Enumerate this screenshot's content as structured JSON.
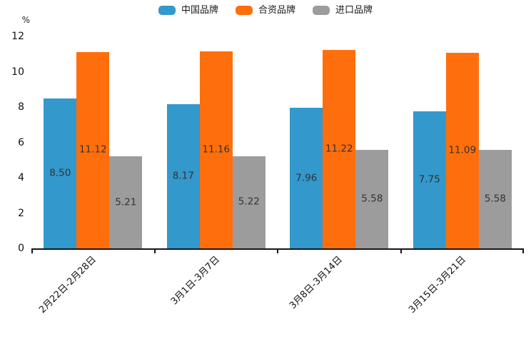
{
  "chart_data": {
    "type": "bar",
    "title": "",
    "categories": [
      "2月22日-2月28日",
      "3月1日-3月7日",
      "3月8日-3月14日",
      "3月15日-3月21日"
    ],
    "series": [
      {
        "name": "中国品牌",
        "color": "#3398CB",
        "values": [
          8.5,
          8.17,
          7.96,
          7.75
        ],
        "labels": [
          "8.50",
          "8.17",
          "7.96",
          "7.75"
        ]
      },
      {
        "name": "合资品牌",
        "color": "#FF6E0C",
        "values": [
          11.12,
          11.16,
          11.22,
          11.09
        ],
        "labels": [
          "11.12",
          "11.16",
          "11.22",
          "11.09"
        ]
      },
      {
        "name": "进口品牌",
        "color": "#9C9C9C",
        "values": [
          5.21,
          5.22,
          5.58,
          5.58
        ],
        "labels": [
          "5.21",
          "5.22",
          "5.58",
          "5.58"
        ]
      }
    ],
    "xlabel": "",
    "ylabel": "%",
    "ylim": [
      0,
      12
    ],
    "yticks": [
      0,
      2,
      4,
      6,
      8,
      10,
      12
    ],
    "grid": false,
    "legend_position": "top",
    "value_label_position": "inside-center",
    "bar_gap_within_group": 0
  },
  "colors": {
    "axis": "#161616",
    "value_label_text": "#333333",
    "tick_label_text": "#111111"
  }
}
